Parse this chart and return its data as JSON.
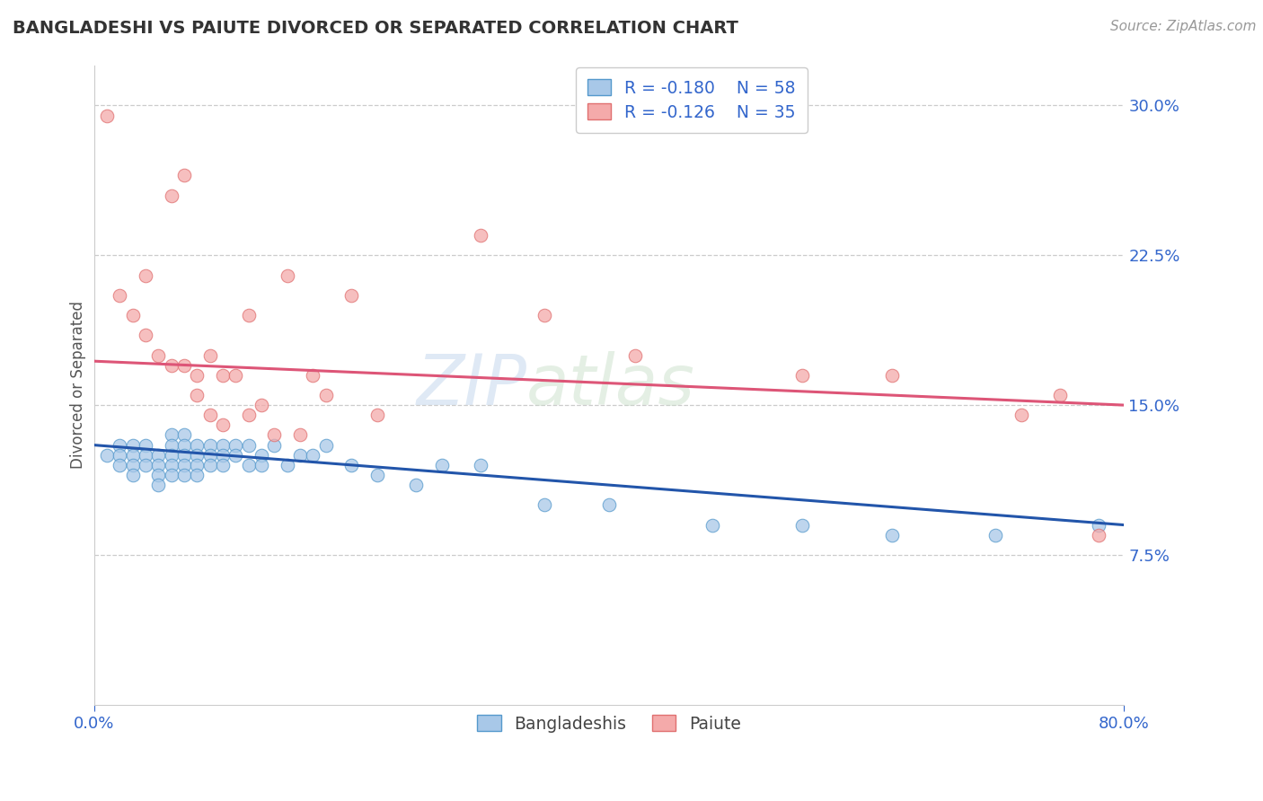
{
  "title": "BANGLADESHI VS PAIUTE DIVORCED OR SEPARATED CORRELATION CHART",
  "source": "Source: ZipAtlas.com",
  "ylabel": "Divorced or Separated",
  "watermark_line1": "ZIP",
  "watermark_line2": "atlas",
  "xlim": [
    0.0,
    0.8
  ],
  "ylim": [
    0.0,
    0.32
  ],
  "xticks": [
    0.0,
    0.8
  ],
  "xtick_labels": [
    "0.0%",
    "80.0%"
  ],
  "yticks": [
    0.075,
    0.15,
    0.225,
    0.3
  ],
  "ytick_labels": [
    "7.5%",
    "15.0%",
    "22.5%",
    "30.0%"
  ],
  "blue_R": -0.18,
  "blue_N": 58,
  "pink_R": -0.126,
  "pink_N": 35,
  "blue_scatter_color": "#a8c8e8",
  "blue_edge_color": "#5599cc",
  "blue_line_color": "#2255aa",
  "pink_scatter_color": "#f4aaaa",
  "pink_edge_color": "#e07070",
  "pink_line_color": "#dd5577",
  "legend_text_color": "#3366cc",
  "background_color": "#ffffff",
  "grid_color": "#cccccc",
  "blue_x": [
    0.01,
    0.02,
    0.02,
    0.02,
    0.03,
    0.03,
    0.03,
    0.03,
    0.04,
    0.04,
    0.04,
    0.05,
    0.05,
    0.05,
    0.05,
    0.06,
    0.06,
    0.06,
    0.06,
    0.06,
    0.07,
    0.07,
    0.07,
    0.07,
    0.07,
    0.08,
    0.08,
    0.08,
    0.08,
    0.09,
    0.09,
    0.09,
    0.1,
    0.1,
    0.1,
    0.11,
    0.11,
    0.12,
    0.12,
    0.13,
    0.13,
    0.14,
    0.15,
    0.16,
    0.17,
    0.18,
    0.2,
    0.22,
    0.25,
    0.27,
    0.3,
    0.35,
    0.4,
    0.48,
    0.55,
    0.62,
    0.7,
    0.78
  ],
  "blue_y": [
    0.125,
    0.13,
    0.125,
    0.12,
    0.13,
    0.125,
    0.12,
    0.115,
    0.13,
    0.125,
    0.12,
    0.125,
    0.12,
    0.115,
    0.11,
    0.135,
    0.13,
    0.125,
    0.12,
    0.115,
    0.135,
    0.13,
    0.125,
    0.12,
    0.115,
    0.13,
    0.125,
    0.12,
    0.115,
    0.13,
    0.125,
    0.12,
    0.13,
    0.125,
    0.12,
    0.13,
    0.125,
    0.13,
    0.12,
    0.125,
    0.12,
    0.13,
    0.12,
    0.125,
    0.125,
    0.13,
    0.12,
    0.115,
    0.11,
    0.12,
    0.12,
    0.1,
    0.1,
    0.09,
    0.09,
    0.085,
    0.085,
    0.09
  ],
  "pink_x": [
    0.01,
    0.02,
    0.03,
    0.04,
    0.04,
    0.05,
    0.06,
    0.06,
    0.07,
    0.07,
    0.08,
    0.08,
    0.09,
    0.09,
    0.1,
    0.1,
    0.11,
    0.12,
    0.12,
    0.13,
    0.14,
    0.15,
    0.16,
    0.17,
    0.18,
    0.2,
    0.22,
    0.3,
    0.35,
    0.42,
    0.55,
    0.62,
    0.72,
    0.75,
    0.78
  ],
  "pink_y": [
    0.295,
    0.205,
    0.195,
    0.215,
    0.185,
    0.175,
    0.255,
    0.17,
    0.265,
    0.17,
    0.165,
    0.155,
    0.175,
    0.145,
    0.165,
    0.14,
    0.165,
    0.195,
    0.145,
    0.15,
    0.135,
    0.215,
    0.135,
    0.165,
    0.155,
    0.205,
    0.145,
    0.235,
    0.195,
    0.175,
    0.165,
    0.165,
    0.145,
    0.155,
    0.085
  ]
}
